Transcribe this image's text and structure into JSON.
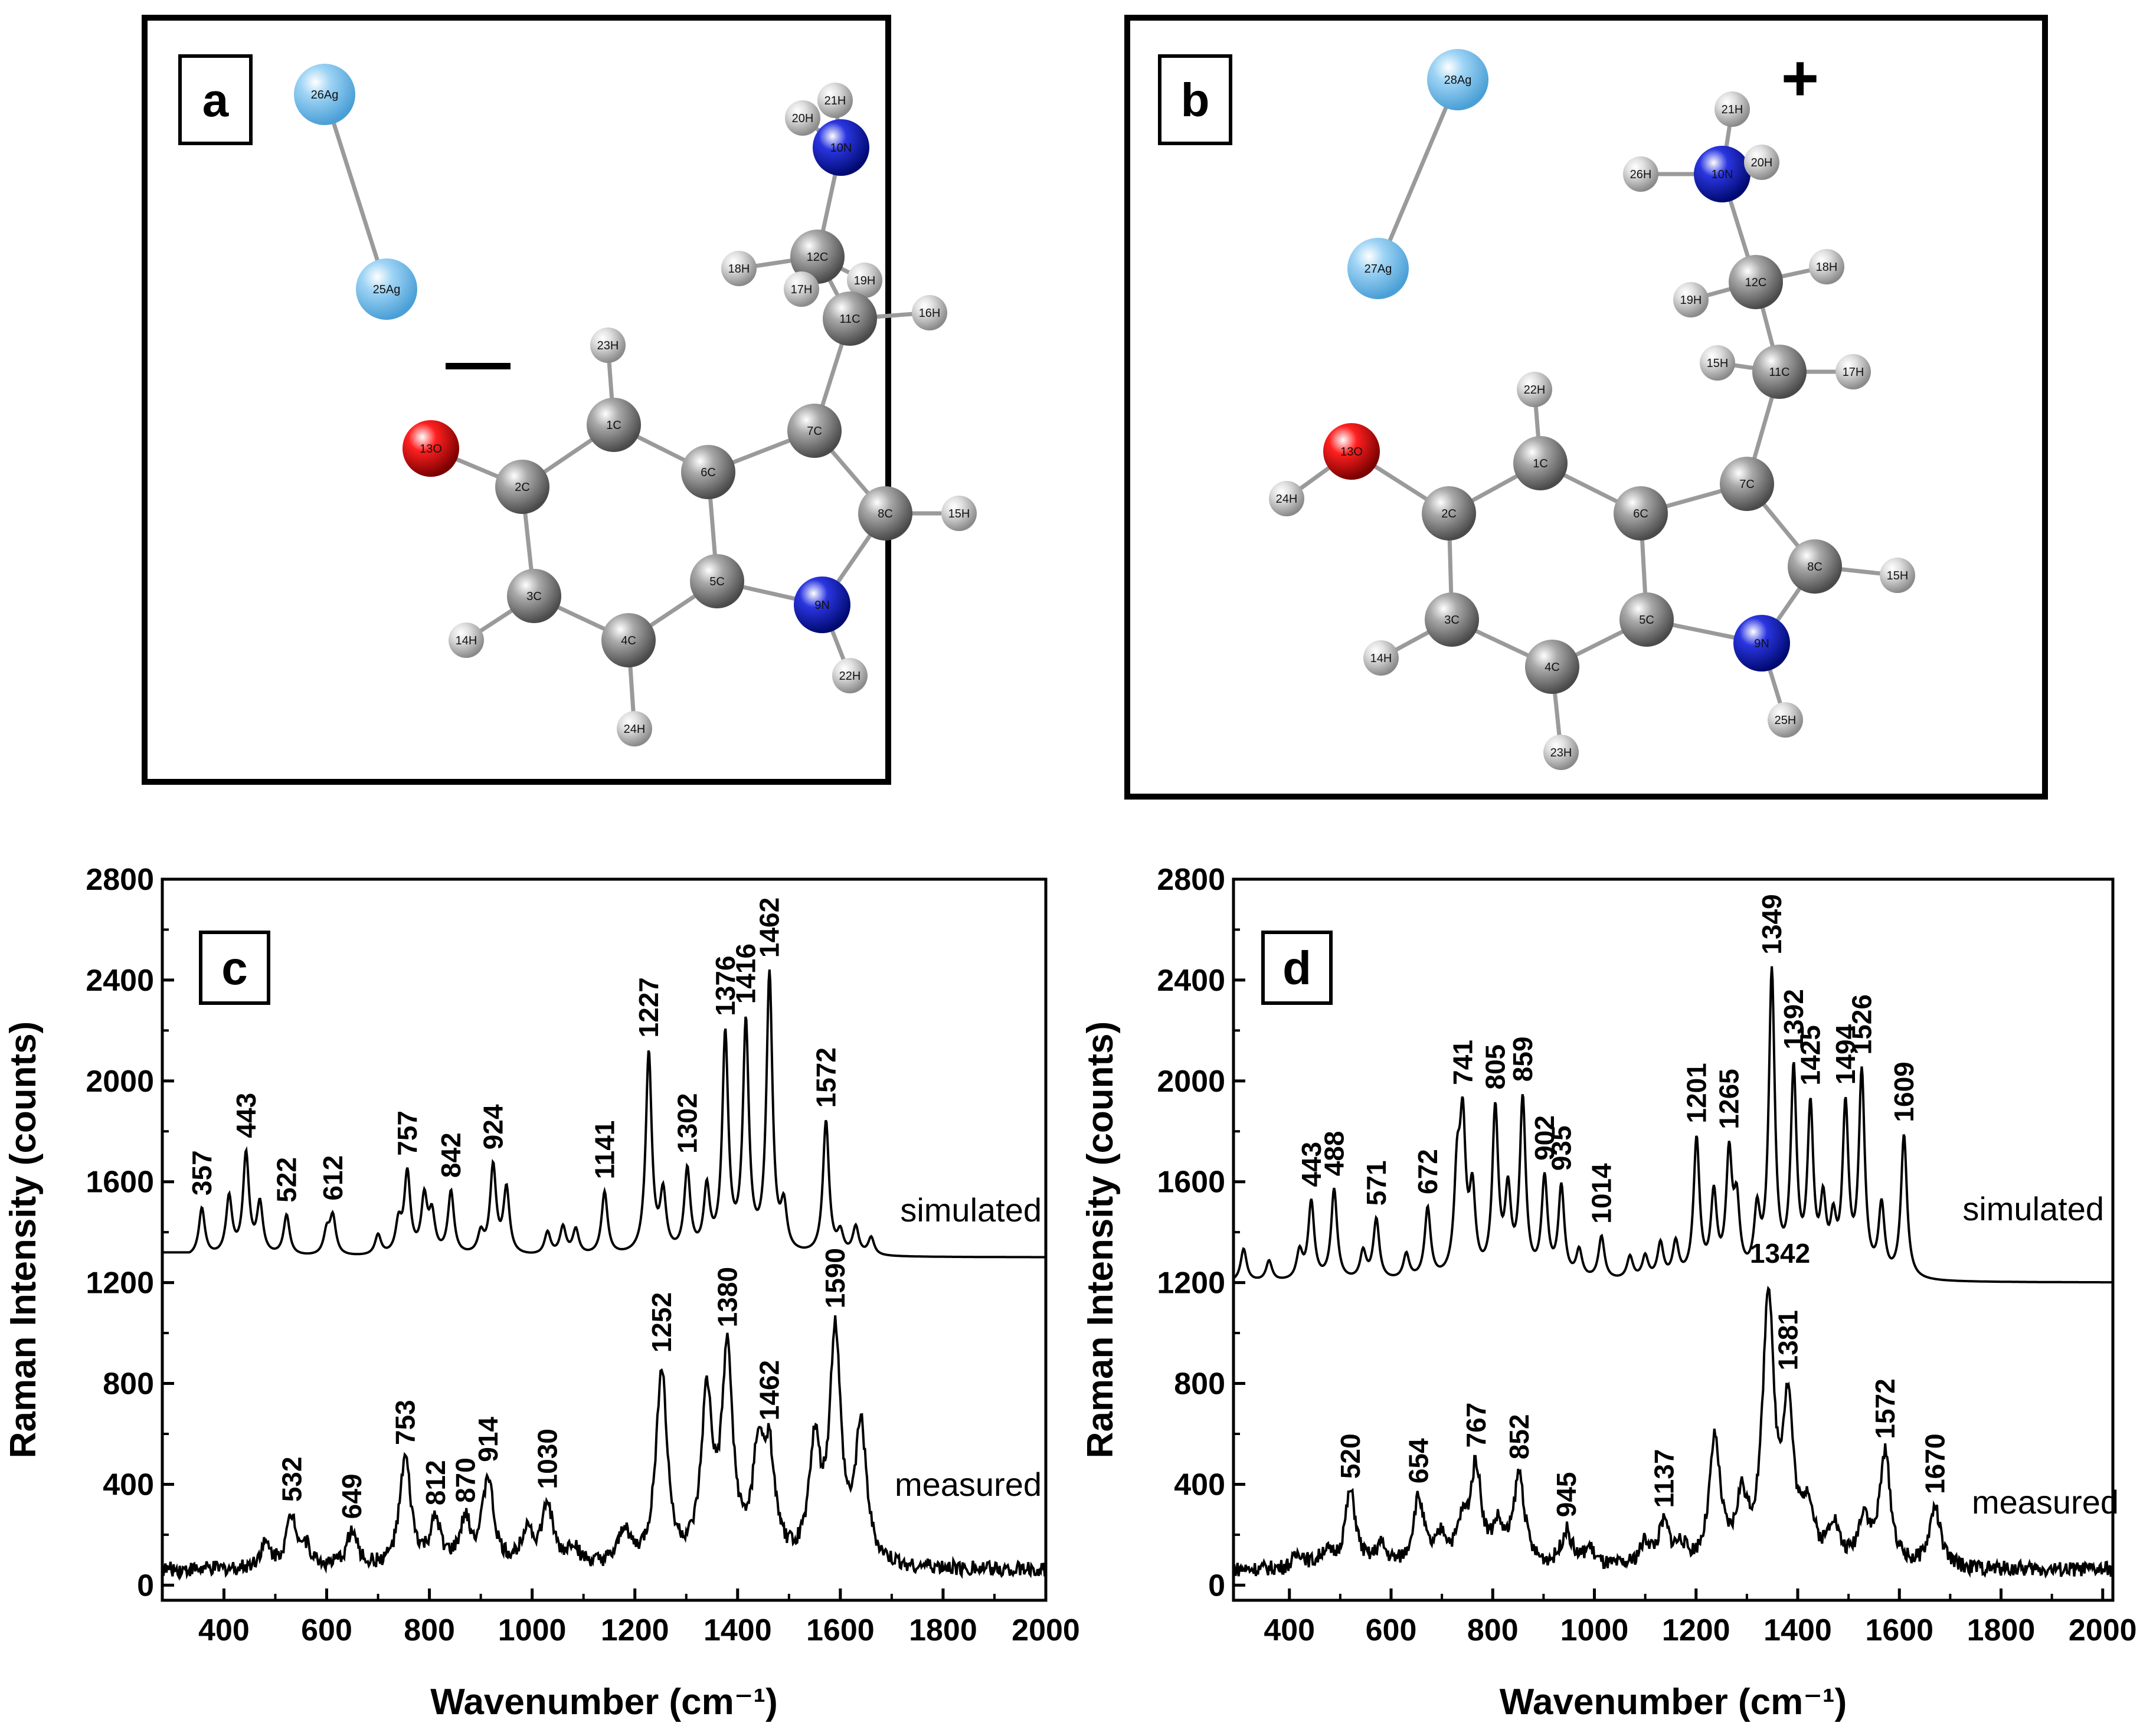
{
  "panels_molecules": [
    {
      "letter": "a",
      "charge": "—",
      "atoms": [
        "26Ag",
        "25Ag",
        "21H",
        "20H",
        "10N",
        "12C",
        "18H",
        "17H",
        "19H",
        "11C",
        "16H",
        "23H",
        "7C",
        "13O",
        "2C",
        "1C",
        "6C",
        "8C",
        "15H",
        "3C",
        "5C",
        "9N",
        "14H",
        "4C",
        "22H",
        "24H"
      ]
    },
    {
      "letter": "b",
      "charge": "+",
      "atoms": [
        "28Ag",
        "27Ag",
        "21H",
        "26H",
        "10N",
        "20H",
        "12C",
        "18H",
        "19H",
        "15H",
        "11C",
        "17H",
        "22H",
        "13O",
        "24H",
        "1C",
        "6C",
        "7C",
        "2C",
        "8C",
        "15H",
        "3C",
        "5C",
        "9N",
        "14H",
        "4C",
        "25H",
        "23H"
      ]
    }
  ],
  "chart_data": [
    {
      "panel": "c",
      "type": "line",
      "xlabel": "Wavenumber (cm⁻¹)",
      "ylabel": "Raman Intensity (counts)",
      "xlim": [
        280,
        2000
      ],
      "ylim": [
        -60,
        2800
      ],
      "xticks": [
        "400",
        "600",
        "800",
        "1000",
        "1200",
        "1400",
        "1600",
        "1800",
        "2000"
      ],
      "yticks": [
        "0",
        "400",
        "800",
        "1200",
        "1600",
        "2000",
        "2400",
        "2800"
      ],
      "series": [
        {
          "name": "simulated",
          "baseline": 1300,
          "peaks": [
            [
              357,
              190
            ],
            [
              410,
              230
            ],
            [
              443,
              400
            ],
            [
              470,
              200
            ],
            [
              522,
              160
            ],
            [
              600,
              90
            ],
            [
              612,
              150
            ],
            [
              700,
              80
            ],
            [
              740,
              120
            ],
            [
              757,
              320
            ],
            [
              790,
              220
            ],
            [
              805,
              150
            ],
            [
              842,
              250
            ],
            [
              900,
              80
            ],
            [
              924,
              350
            ],
            [
              950,
              260
            ],
            [
              1030,
              90
            ],
            [
              1060,
              110
            ],
            [
              1085,
              100
            ],
            [
              1141,
              250
            ],
            [
              1227,
              800
            ],
            [
              1255,
              230
            ],
            [
              1302,
              330
            ],
            [
              1340,
              250
            ],
            [
              1376,
              860
            ],
            [
              1416,
              900
            ],
            [
              1462,
              1100
            ],
            [
              1490,
              170
            ],
            [
              1572,
              530
            ],
            [
              1600,
              80
            ],
            [
              1630,
              110
            ],
            [
              1660,
              70
            ]
          ],
          "annotations": [
            "357",
            "443",
            "522",
            "612",
            "757",
            "842",
            "924",
            "1141",
            "1227",
            "1302",
            "1376",
            "1416",
            "1462",
            "1572"
          ]
        },
        {
          "name": "measured",
          "baseline": 60,
          "peaks": [
            [
              480,
              90
            ],
            [
              532,
              200
            ],
            [
              560,
              70
            ],
            [
              649,
              140
            ],
            [
              753,
              430
            ],
            [
              812,
              170
            ],
            [
              870,
              170
            ],
            [
              914,
              350
            ],
            [
              990,
              150
            ],
            [
              1030,
              240
            ],
            [
              1080,
              80
            ],
            [
              1180,
              140
            ],
            [
              1252,
              780
            ],
            [
              1340,
              640
            ],
            [
              1380,
              810
            ],
            [
              1440,
              400
            ],
            [
              1462,
              390
            ],
            [
              1550,
              450
            ],
            [
              1590,
              900
            ],
            [
              1640,
              540
            ]
          ],
          "annotations": [
            "532",
            "649",
            "753",
            "812",
            "870",
            "914",
            "1030",
            "1252",
            "1380",
            "1462",
            "1590"
          ]
        }
      ]
    },
    {
      "panel": "d",
      "type": "line",
      "xlabel": "Wavenumber (cm⁻¹)",
      "ylabel": "Raman Intensity (counts)",
      "xlim": [
        290,
        2020
      ],
      "ylim": [
        -60,
        2800
      ],
      "xticks": [
        "400",
        "600",
        "800",
        "1000",
        "1200",
        "1400",
        "1600",
        "1800",
        "2000"
      ],
      "yticks": [
        "0",
        "400",
        "800",
        "1200",
        "1600",
        "2000",
        "2400",
        "2800"
      ],
      "series": [
        {
          "name": "simulated",
          "baseline": 1200,
          "peaks": [
            [
              310,
              130
            ],
            [
              360,
              80
            ],
            [
              420,
              110
            ],
            [
              443,
              310
            ],
            [
              488,
              360
            ],
            [
              545,
              110
            ],
            [
              571,
              240
            ],
            [
              630,
              100
            ],
            [
              672,
              280
            ],
            [
              730,
              380
            ],
            [
              741,
              570
            ],
            [
              760,
              320
            ],
            [
              805,
              660
            ],
            [
              830,
              320
            ],
            [
              859,
              700
            ],
            [
              902,
              390
            ],
            [
              935,
              360
            ],
            [
              970,
              110
            ],
            [
              1014,
              170
            ],
            [
              1070,
              90
            ],
            [
              1100,
              90
            ],
            [
              1130,
              140
            ],
            [
              1160,
              140
            ],
            [
              1201,
              550
            ],
            [
              1235,
              320
            ],
            [
              1265,
              470
            ],
            [
              1280,
              270
            ],
            [
              1320,
              240
            ],
            [
              1349,
              1200
            ],
            [
              1392,
              800
            ],
            [
              1425,
              650
            ],
            [
              1450,
              270
            ],
            [
              1470,
              190
            ],
            [
              1494,
              660
            ],
            [
              1526,
              800
            ],
            [
              1565,
              280
            ],
            [
              1609,
              570
            ]
          ],
          "annotations": [
            "443",
            "488",
            "571",
            "672",
            "741",
            "805",
            "859",
            "902",
            "935",
            "1014",
            "1201",
            "1265",
            "1349",
            "1392",
            "1425",
            "1494",
            "1526",
            "1609"
          ]
        },
        {
          "name": "measured",
          "baseline": 60,
          "peaks": [
            [
              420,
              60
            ],
            [
              470,
              60
            ],
            [
              520,
              300
            ],
            [
              580,
              80
            ],
            [
              654,
              270
            ],
            [
              700,
              110
            ],
            [
              740,
              140
            ],
            [
              767,
              380
            ],
            [
              810,
              140
            ],
            [
              852,
              360
            ],
            [
              945,
              140
            ],
            [
              990,
              70
            ],
            [
              1100,
              90
            ],
            [
              1137,
              160
            ],
            [
              1170,
              70
            ],
            [
              1237,
              490
            ],
            [
              1290,
              240
            ],
            [
              1342,
              1050
            ],
            [
              1381,
              600
            ],
            [
              1420,
              220
            ],
            [
              1470,
              160
            ],
            [
              1530,
              190
            ],
            [
              1572,
              440
            ],
            [
              1670,
              240
            ]
          ],
          "annotations": [
            "520",
            "654",
            "767",
            "852",
            "945",
            "1670",
            "1137",
            "1342",
            "1381",
            "1572",
            "1670"
          ]
        }
      ]
    }
  ]
}
